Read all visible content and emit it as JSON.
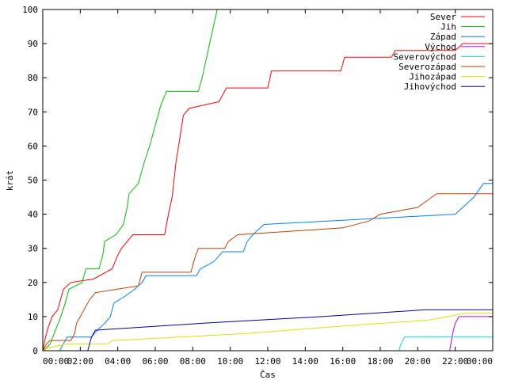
{
  "chart_data": {
    "type": "line",
    "xlabel": "Čas",
    "ylabel": "krát",
    "xlim": [
      0,
      24
    ],
    "ylim": [
      0,
      100
    ],
    "x_ticks": [
      {
        "value": 0,
        "label": "00:00"
      },
      {
        "value": 2,
        "label": "02:00"
      },
      {
        "value": 4,
        "label": "04:00"
      },
      {
        "value": 6,
        "label": "06:00"
      },
      {
        "value": 8,
        "label": "08:00"
      },
      {
        "value": 10,
        "label": "10:00"
      },
      {
        "value": 12,
        "label": "12:00"
      },
      {
        "value": 14,
        "label": "14:00"
      },
      {
        "value": 16,
        "label": "16:00"
      },
      {
        "value": 18,
        "label": "18:00"
      },
      {
        "value": 20,
        "label": "20:00"
      },
      {
        "value": 22,
        "label": "22:00"
      },
      {
        "value": 24,
        "label": "00:00"
      }
    ],
    "y_ticks": [
      0,
      10,
      20,
      30,
      40,
      50,
      60,
      70,
      80,
      90,
      100
    ],
    "grid": false,
    "legend_position": "top-right",
    "series": [
      {
        "name": "Sever",
        "color": "#ff0000",
        "points": [
          [
            0,
            0
          ],
          [
            0.15,
            4
          ],
          [
            0.3,
            7
          ],
          [
            0.5,
            10
          ],
          [
            0.8,
            12
          ],
          [
            1.1,
            18
          ],
          [
            1.5,
            20
          ],
          [
            2.7,
            21
          ],
          [
            3.7,
            24
          ],
          [
            4.0,
            28
          ],
          [
            4.2,
            30
          ],
          [
            4.8,
            34
          ],
          [
            6.5,
            34
          ],
          [
            6.7,
            40
          ],
          [
            6.9,
            45
          ],
          [
            7.1,
            55
          ],
          [
            7.3,
            62
          ],
          [
            7.5,
            69
          ],
          [
            7.8,
            71
          ],
          [
            9.4,
            73
          ],
          [
            9.6,
            75
          ],
          [
            9.8,
            77
          ],
          [
            12.0,
            77
          ],
          [
            12.2,
            82
          ],
          [
            15.9,
            82
          ],
          [
            16.1,
            86
          ],
          [
            18.6,
            86
          ],
          [
            18.8,
            88
          ],
          [
            22.0,
            88
          ],
          [
            22.4,
            90
          ],
          [
            24,
            90
          ]
        ]
      },
      {
        "name": "Jih",
        "color": "#00c000",
        "points": [
          [
            0,
            0
          ],
          [
            0.4,
            2
          ],
          [
            0.6,
            5
          ],
          [
            0.9,
            9
          ],
          [
            1.2,
            14
          ],
          [
            1.4,
            18
          ],
          [
            2.1,
            20
          ],
          [
            2.3,
            24
          ],
          [
            3.0,
            24
          ],
          [
            3.2,
            28
          ],
          [
            3.3,
            32
          ],
          [
            3.9,
            34
          ],
          [
            4.3,
            37
          ],
          [
            4.5,
            42
          ],
          [
            4.6,
            46
          ],
          [
            5.1,
            49
          ],
          [
            5.4,
            55
          ],
          [
            5.7,
            60
          ],
          [
            6.0,
            66
          ],
          [
            6.3,
            72
          ],
          [
            6.6,
            76
          ],
          [
            8.3,
            76
          ],
          [
            8.5,
            80
          ],
          [
            8.7,
            85
          ],
          [
            8.9,
            90
          ],
          [
            9.1,
            95
          ],
          [
            9.3,
            100
          ]
        ]
      },
      {
        "name": "Západ",
        "color": "#0080ff",
        "points": [
          [
            0.9,
            0
          ],
          [
            1.1,
            2
          ],
          [
            1.3,
            4
          ],
          [
            2.6,
            4
          ],
          [
            2.9,
            6
          ],
          [
            3.3,
            8
          ],
          [
            3.6,
            10
          ],
          [
            3.8,
            14
          ],
          [
            4.4,
            16
          ],
          [
            4.9,
            18
          ],
          [
            5.3,
            20
          ],
          [
            5.5,
            22
          ],
          [
            8.2,
            22
          ],
          [
            8.4,
            24
          ],
          [
            9.1,
            26
          ],
          [
            9.6,
            29
          ],
          [
            10.7,
            29
          ],
          [
            10.9,
            32
          ],
          [
            11.2,
            34
          ],
          [
            11.8,
            37
          ],
          [
            22.0,
            40
          ],
          [
            22.4,
            42
          ],
          [
            23.0,
            45
          ],
          [
            23.5,
            49
          ],
          [
            24,
            49
          ]
        ]
      },
      {
        "name": "Východ",
        "color": "#c000ff",
        "points": [
          [
            21.7,
            0
          ],
          [
            21.8,
            3
          ],
          [
            21.9,
            6
          ],
          [
            22.0,
            8
          ],
          [
            22.2,
            10
          ],
          [
            24,
            10
          ]
        ]
      },
      {
        "name": "Severovýchod",
        "color": "#00e0e0",
        "points": [
          [
            19.0,
            0
          ],
          [
            19.1,
            2
          ],
          [
            19.3,
            4
          ],
          [
            24,
            4
          ]
        ]
      },
      {
        "name": "Severozápad",
        "color": "#c04000",
        "points": [
          [
            0,
            0
          ],
          [
            0.2,
            2
          ],
          [
            0.4,
            3
          ],
          [
            1.5,
            3
          ],
          [
            1.7,
            5
          ],
          [
            1.8,
            8
          ],
          [
            2.2,
            12
          ],
          [
            2.5,
            15
          ],
          [
            2.8,
            17
          ],
          [
            5.1,
            19
          ],
          [
            5.3,
            23
          ],
          [
            7.9,
            23
          ],
          [
            8.1,
            27
          ],
          [
            8.3,
            30
          ],
          [
            9.7,
            30
          ],
          [
            9.9,
            32
          ],
          [
            10.4,
            34
          ],
          [
            16.0,
            36
          ],
          [
            17.4,
            38
          ],
          [
            18.0,
            40
          ],
          [
            20.0,
            42
          ],
          [
            20.5,
            44
          ],
          [
            21.0,
            46
          ],
          [
            24,
            46
          ]
        ]
      },
      {
        "name": "Jihozápad",
        "color": "#e0e000",
        "points": [
          [
            0,
            0
          ],
          [
            0.4,
            1
          ],
          [
            1.3,
            2
          ],
          [
            3.5,
            2
          ],
          [
            3.7,
            3
          ],
          [
            10.8,
            5
          ],
          [
            15.5,
            7
          ],
          [
            20.6,
            9
          ],
          [
            21.6,
            10
          ],
          [
            22.5,
            11
          ],
          [
            24,
            11
          ]
        ]
      },
      {
        "name": "Jihovýchod",
        "color": "#0000a0",
        "points": [
          [
            2.4,
            0
          ],
          [
            2.6,
            4
          ],
          [
            2.8,
            6
          ],
          [
            8.4,
            8
          ],
          [
            14.9,
            10
          ],
          [
            20.4,
            12
          ],
          [
            24,
            12
          ]
        ]
      }
    ]
  }
}
